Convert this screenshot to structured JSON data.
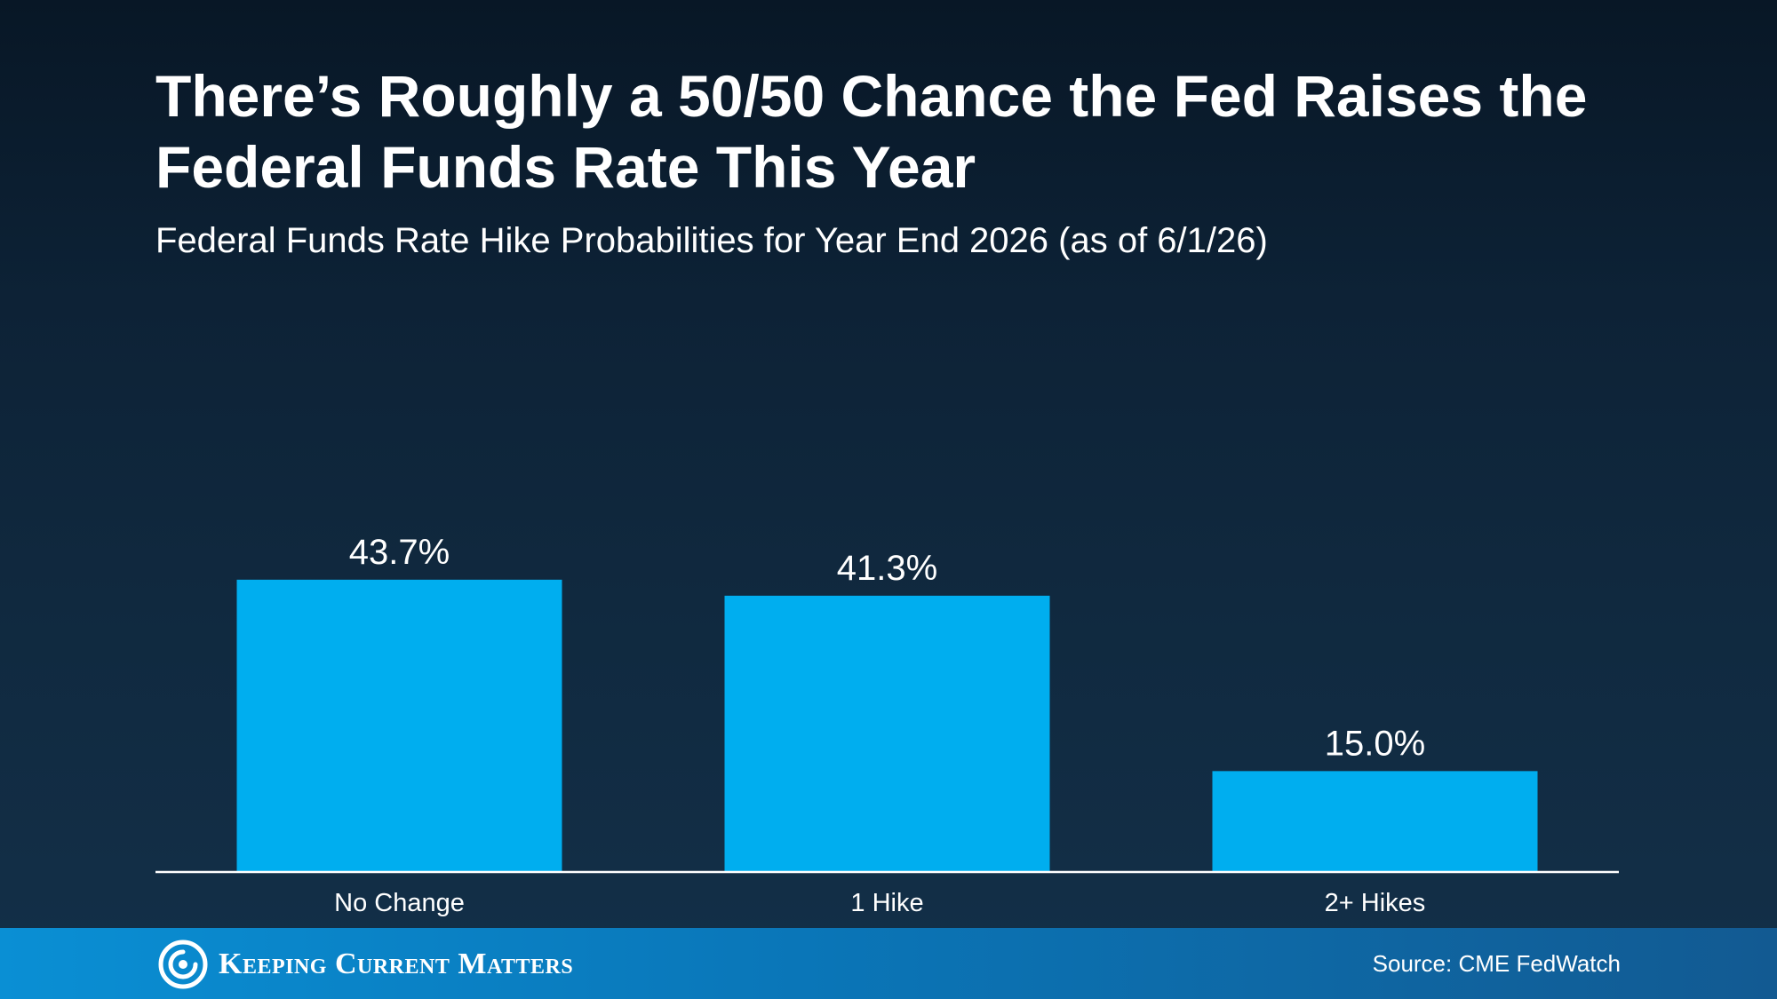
{
  "title": "There’s Roughly a 50/50 Chance the Fed Raises the Federal Funds Rate This Year",
  "subtitle": "Federal Funds Rate Hike Probabilities for Year End 2026 (as of 6/1/26)",
  "chart_data": {
    "type": "bar",
    "title": "There’s Roughly a 50/50 Chance the Fed Raises the Federal Funds Rate This Year",
    "subtitle": "Federal Funds Rate Hike Probabilities for Year End 2026 (as of 6/1/26)",
    "categories": [
      "No Change",
      "1 Hike",
      "2+ Hikes"
    ],
    "values": [
      43.7,
      41.3,
      15.0
    ],
    "value_labels": [
      "43.7%",
      "41.3%",
      "15.0%"
    ],
    "xlabel": "",
    "ylabel": "",
    "ylim": [
      0,
      50
    ],
    "grid": false,
    "legend": "none",
    "bar_color": "#00aeef",
    "axis_color": "#ffffff"
  },
  "footer": {
    "brand": "Keeping Current Matters",
    "brand_icon": "kcm-swirl-logo-icon",
    "source": "Source: CME FedWatch"
  },
  "colors": {
    "background_top": "#081726",
    "background_bottom": "#133049",
    "bar": "#00aeef",
    "footer": "#0a76b8",
    "text": "#ffffff"
  }
}
